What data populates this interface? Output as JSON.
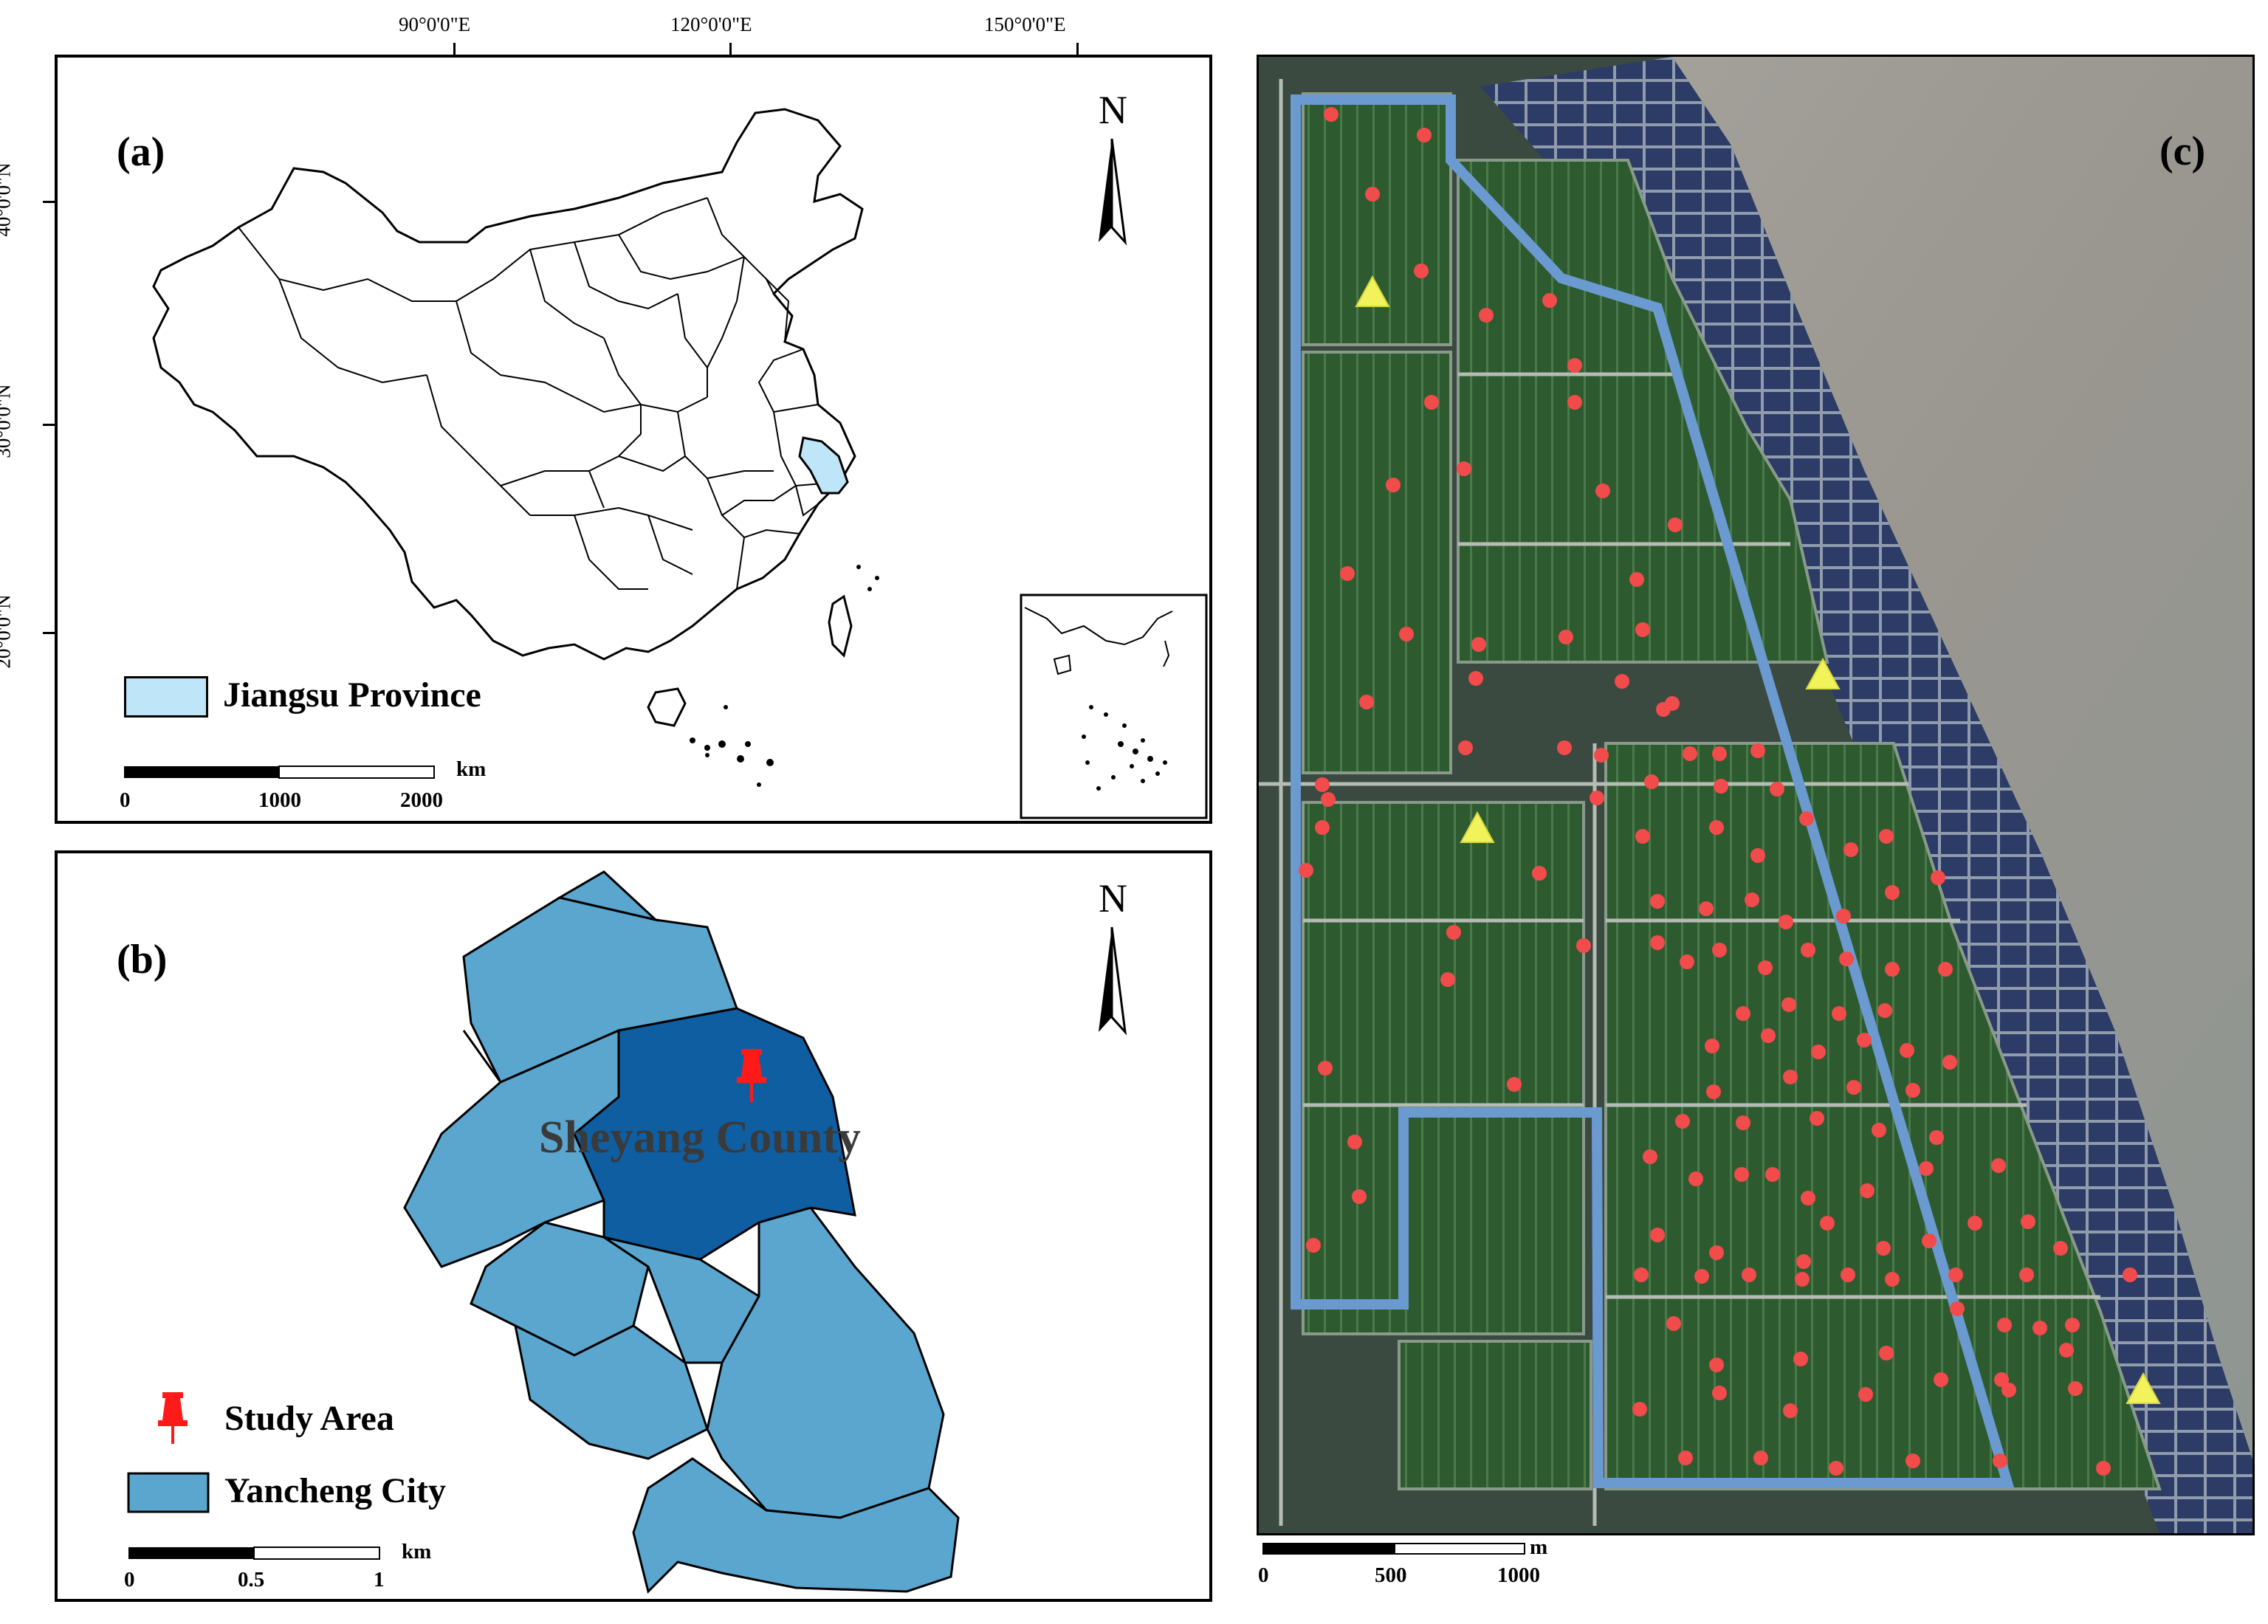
{
  "panel_a": {
    "label": "(a)",
    "lon_labels": [
      "90°0'0\"E",
      "120°0'0\"E",
      "150°0'0\"E"
    ],
    "lat_labels": [
      "40°0'0\"N",
      "30°0'0\"N",
      "20°0'0\"N"
    ],
    "north": "N",
    "legend": {
      "label": "Jiangsu Province",
      "color": "#bfe6f8"
    },
    "scale": {
      "ticks": [
        "0",
        "1000",
        "2000"
      ],
      "unit": "km"
    }
  },
  "panel_b": {
    "label": "(b)",
    "north": "N",
    "county_label": "Sheyang County",
    "legend": [
      {
        "label": "Study Area",
        "icon": "pushpin-icon",
        "color": "#ff1a1a"
      },
      {
        "label": "Yancheng City",
        "color": "#5aa6cf"
      }
    ],
    "highlight_color": "#0f5ea1",
    "scale": {
      "ticks": [
        "0",
        "0.5",
        "1"
      ],
      "unit": "km"
    }
  },
  "panel_c": {
    "label": "(c)",
    "boundary_color": "#6a9ad0",
    "point_color": "#f24b4b",
    "triangle_color": "#f2f25a",
    "scale": {
      "ticks": [
        "0",
        "500",
        "1000"
      ],
      "unit": "m"
    }
  }
}
